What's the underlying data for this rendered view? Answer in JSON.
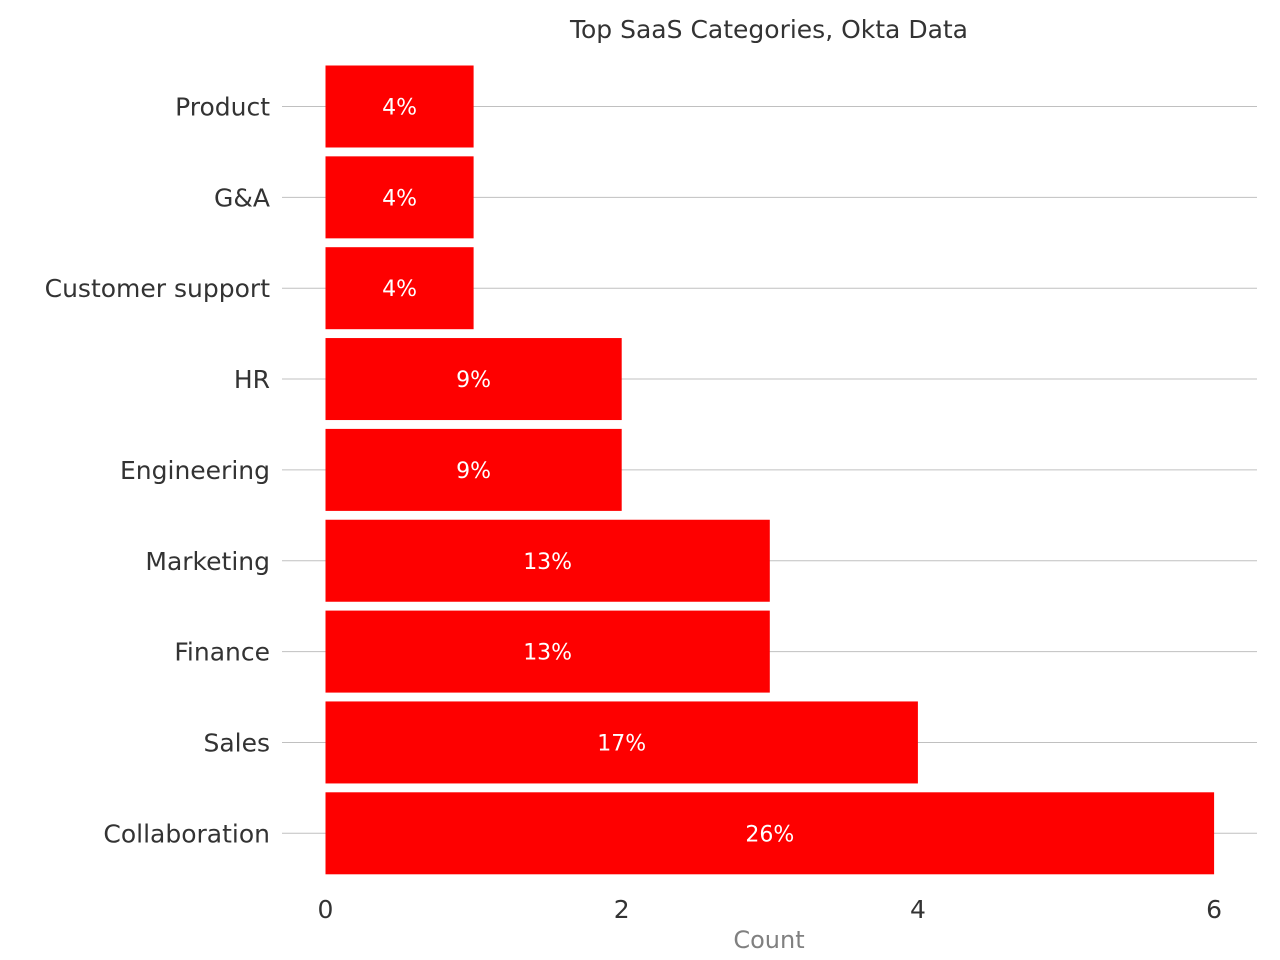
{
  "chart_data": {
    "type": "bar",
    "orientation": "horizontal",
    "title": "Top SaaS Categories, Okta Data",
    "xlabel": "Count",
    "ylabel": "",
    "xlim": [
      0,
      6.3
    ],
    "xticks": [
      0,
      2,
      4,
      6
    ],
    "grid": "horizontal",
    "categories": [
      "Product",
      "G&A",
      "Customer support",
      "HR",
      "Engineering",
      "Marketing",
      "Finance",
      "Sales",
      "Collaboration"
    ],
    "values": [
      1,
      1,
      1,
      2,
      2,
      3,
      3,
      4,
      6
    ],
    "data_labels": [
      "4%",
      "4%",
      "4%",
      "9%",
      "9%",
      "13%",
      "13%",
      "17%",
      "26%"
    ],
    "bar_color": "#fe0000",
    "label_color": "#ffffff"
  }
}
